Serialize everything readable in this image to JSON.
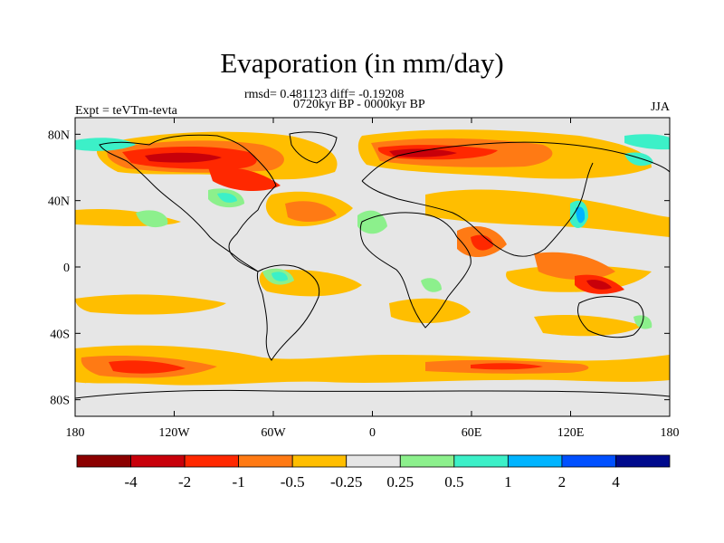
{
  "title": "Evaporation (in mm/day)",
  "stats": "rmsd= 0.481123 diff= -0.19208",
  "period": "0720kyr BP - 0000kyr BP",
  "expt": "Expt = teVTm-tevta",
  "season": "JJA",
  "map": {
    "projection": "cylindrical-equidistant",
    "lon_range": [
      -180,
      180
    ],
    "lat_range": [
      -90,
      90
    ],
    "x_ticks": [
      "180",
      "120W",
      "60W",
      "0",
      "60E",
      "120E",
      "180"
    ],
    "y_ticks": [
      "80N",
      "40N",
      "0",
      "40S",
      "80S"
    ],
    "background_color": "#e6e6e6"
  },
  "colorbar": {
    "labels": [
      "-4",
      "-2",
      "-1",
      "-0.5",
      "-0.25",
      "0.25",
      "0.5",
      "1",
      "2",
      "4"
    ],
    "colors": [
      "#8b0000",
      "#c8000a",
      "#ff2800",
      "#ff7a14",
      "#ffbe00",
      "#e6e6e6",
      "#8cf08c",
      "#3cf0c8",
      "#00b4ff",
      "#0050ff",
      "#000a8c"
    ]
  },
  "fields": {
    "orange": "#ffbe00",
    "dark_orange": "#ff7a14",
    "red": "#ff2800",
    "crimson": "#c8000a",
    "green": "#8cf08c",
    "cyan": "#3cf0c8",
    "sky": "#00b4ff"
  }
}
